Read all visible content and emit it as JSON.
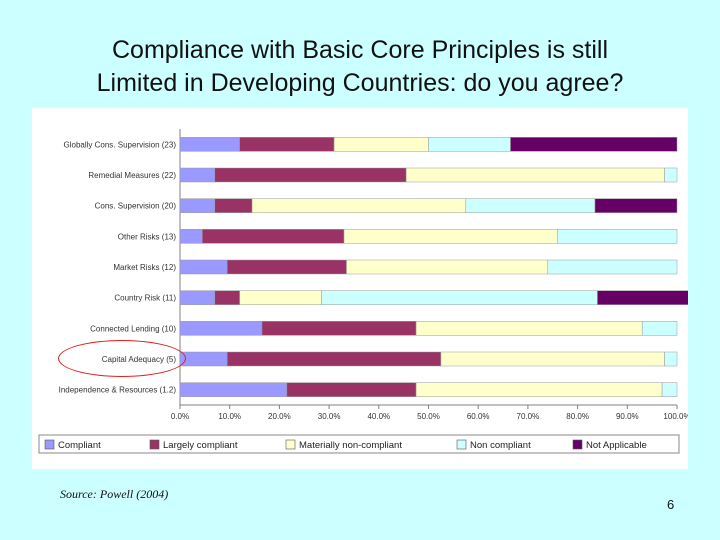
{
  "slide": {
    "title_line1": "Compliance with Basic Core Principles is still",
    "title_line2": "Limited in Developing Countries: do you agree?",
    "source": "Source: Powell (2004)",
    "page_number": "6"
  },
  "highlight": {
    "category": "Capital Adequacy (5)",
    "color": "#e02020"
  },
  "chart_data": {
    "type": "bar",
    "orientation": "horizontal",
    "stacked": "percent",
    "categories": [
      "Globally Cons. Supervision (23)",
      "Remedial Measures (22)",
      "Cons. Supervision (20)",
      "Other Risks (13)",
      "Market Risks (12)",
      "Country Risk (11)",
      "Connected Lending (10)",
      "Capital Adequacy (5)",
      "Independence & Resources (1.2)"
    ],
    "series": [
      {
        "name": "Compliant",
        "color": "#9999ff",
        "values": [
          12,
          7,
          7,
          4.5,
          9.5,
          7,
          16.5,
          9.5,
          21.5
        ]
      },
      {
        "name": "Largely compliant",
        "color": "#993366",
        "values": [
          19,
          38.5,
          7.5,
          28.5,
          24,
          5,
          31,
          43,
          26
        ]
      },
      {
        "name": "Materially non-compliant",
        "color": "#ffffcc",
        "values": [
          19,
          52,
          43,
          43,
          40.5,
          16.5,
          45.5,
          45,
          49.5
        ]
      },
      {
        "name": "Non compliant",
        "color": "#ccffff",
        "values": [
          16.5,
          2.5,
          26,
          24,
          26,
          55.5,
          7,
          2.5,
          3
        ]
      },
      {
        "name": "Not Applicable",
        "color": "#660066",
        "values": [
          33.5,
          0,
          16.5,
          0,
          0,
          26,
          0,
          0,
          0
        ]
      }
    ],
    "x_ticks": [
      "0.0%",
      "10.0%",
      "20.0%",
      "30.0%",
      "40.0%",
      "50.0%",
      "60.0%",
      "70.0%",
      "80.0%",
      "90.0%",
      "100.0%"
    ],
    "xlim": [
      0,
      100
    ],
    "grid": false,
    "legend_position": "bottom"
  }
}
